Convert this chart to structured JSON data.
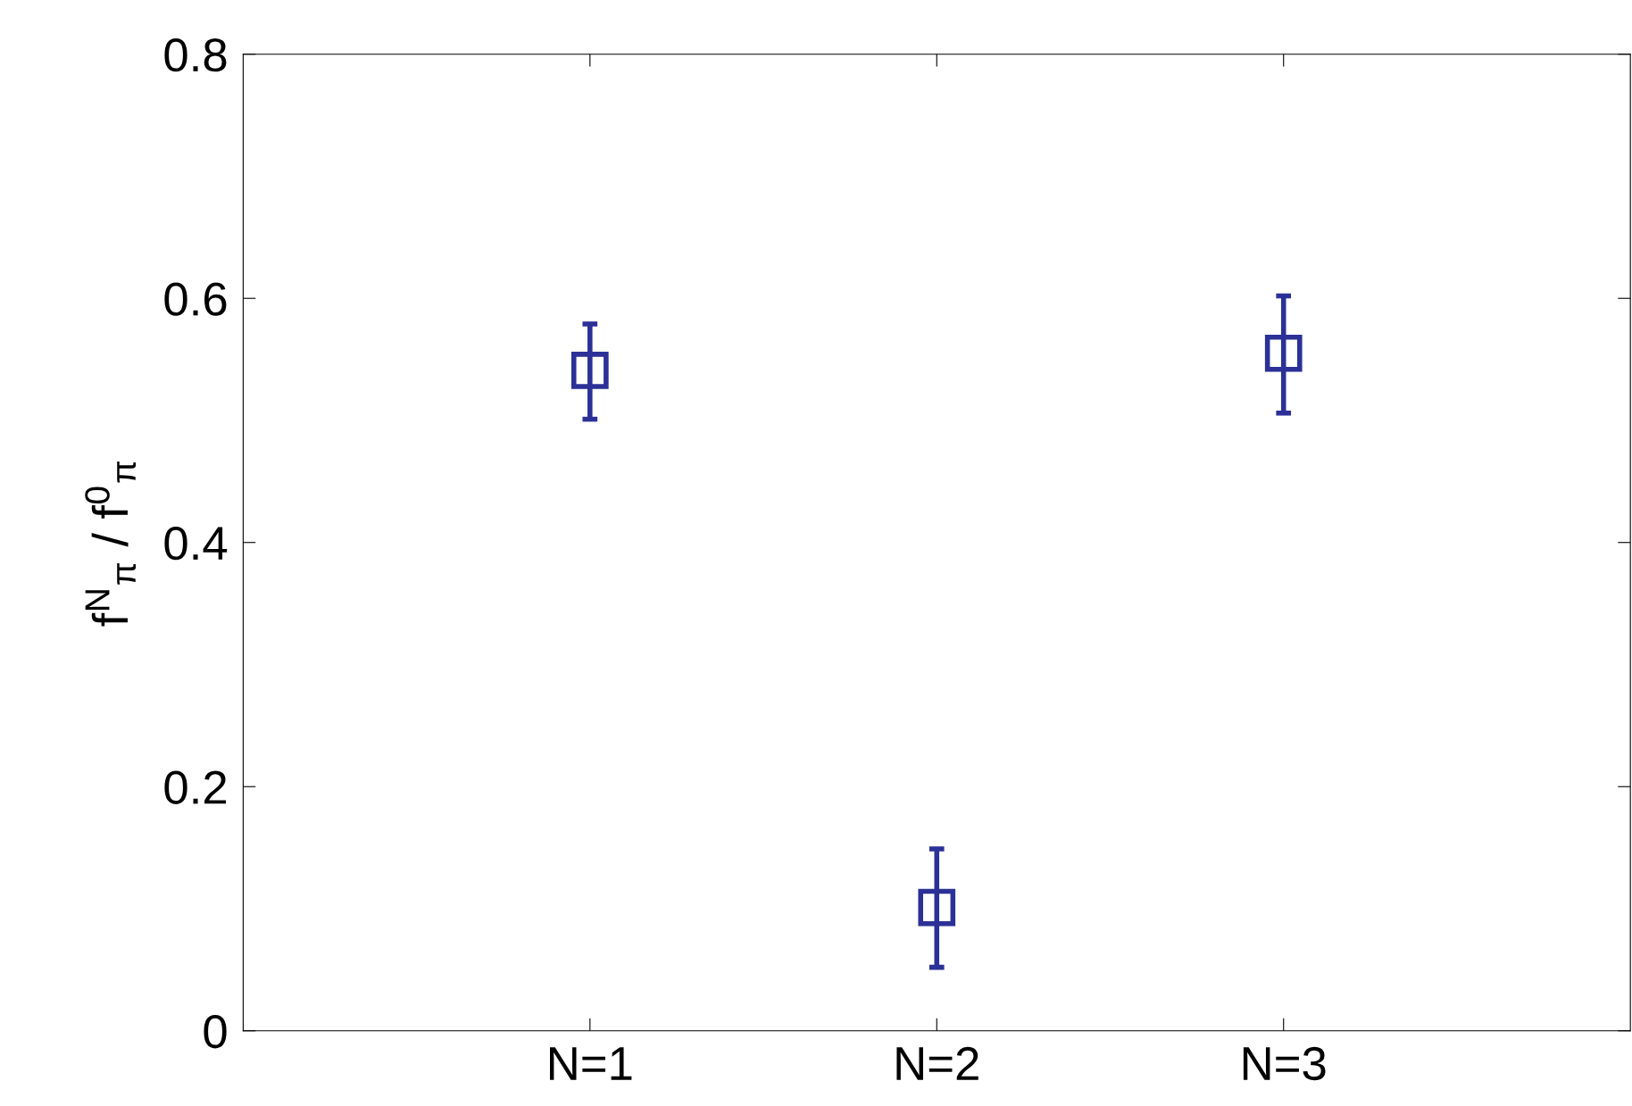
{
  "chart_data": {
    "type": "scatter",
    "ylabel": "f$^{N}$$_{π}$ / f$^{0}$$_{π}$",
    "categories": [
      "N=1",
      "N=2",
      "N=3"
    ],
    "series": [
      {
        "color": "#2b3196",
        "values": [
          0.541,
          0.101,
          0.555
        ],
        "errors": [
          [
            0.501,
            0.579
          ],
          [
            0.052,
            0.149
          ],
          [
            0.506,
            0.602
          ]
        ]
      }
    ],
    "ylim": [
      0,
      0.8
    ],
    "yticks": [
      0,
      0.2,
      0.4,
      0.6,
      0.8
    ],
    "marker": "square",
    "grid": false,
    "legend": false
  }
}
